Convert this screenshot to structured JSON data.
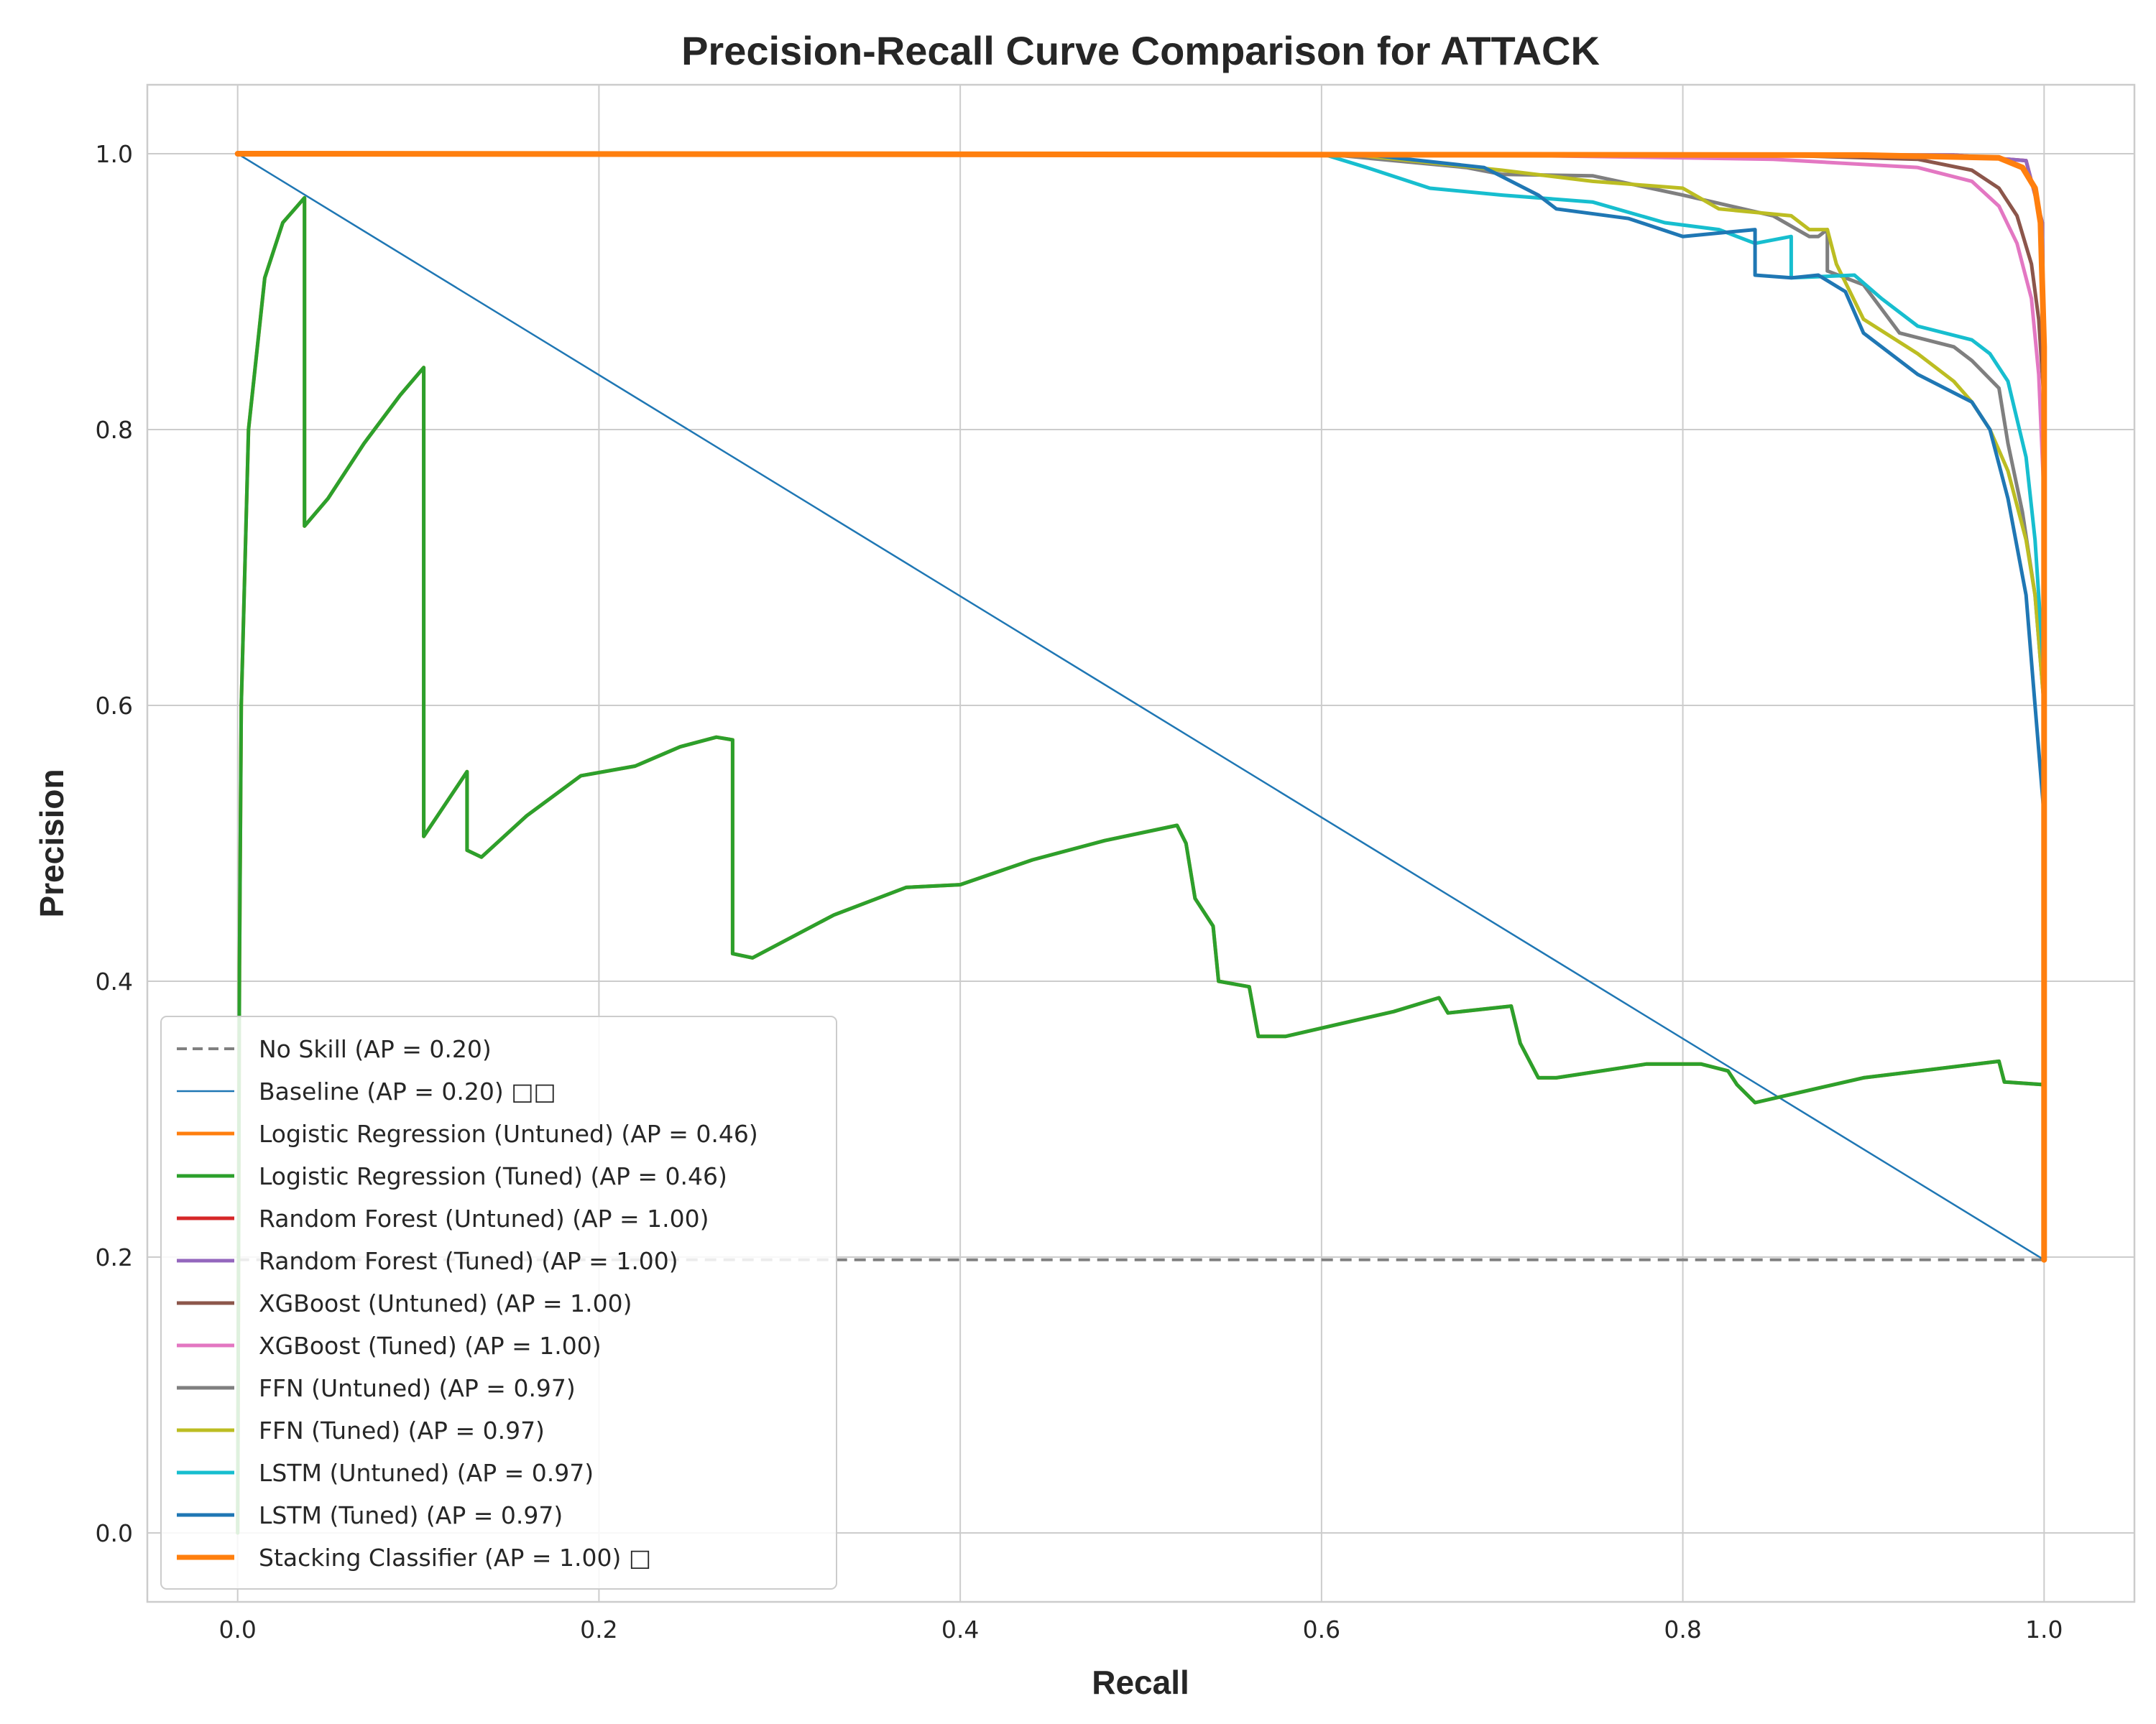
{
  "chart_data": {
    "type": "line",
    "title": "Precision-Recall Curve Comparison for ATTACK",
    "xlabel": "Recall",
    "ylabel": "Precision",
    "xlim": [
      -0.05,
      1.05
    ],
    "ylim": [
      -0.05,
      1.05
    ],
    "xticks": [
      "0.0",
      "0.2",
      "0.4",
      "0.6",
      "0.8",
      "1.0"
    ],
    "yticks": [
      "0.0",
      "0.2",
      "0.4",
      "0.6",
      "0.8",
      "1.0"
    ],
    "grid": true,
    "legend_position": "lower-left",
    "series": [
      {
        "name": "No Skill (AP = 0.20)",
        "color": "#808080",
        "dashed": true,
        "width": 4,
        "points": [
          [
            0,
            0.198
          ],
          [
            1,
            0.198
          ]
        ]
      },
      {
        "name": "Baseline (AP = 0.20) □□",
        "color": "#1f77b4",
        "width": 2.5,
        "points": [
          [
            0,
            1.0
          ],
          [
            1,
            0.198
          ]
        ]
      },
      {
        "name": "Logistic Regression (Untuned) (AP = 0.46)",
        "color": "#ff7f0e",
        "width": 5,
        "points": [
          [
            0,
            0.0
          ],
          [
            0.001,
            0.41
          ],
          [
            0.002,
            0.6
          ],
          [
            0.006,
            0.8
          ],
          [
            0.015,
            0.91
          ],
          [
            0.025,
            0.95
          ],
          [
            0.037,
            0.968
          ],
          [
            0.037,
            0.73
          ],
          [
            0.05,
            0.75
          ],
          [
            0.07,
            0.79
          ],
          [
            0.09,
            0.825
          ],
          [
            0.103,
            0.845
          ],
          [
            0.103,
            0.505
          ],
          [
            0.127,
            0.552
          ],
          [
            0.127,
            0.495
          ],
          [
            0.135,
            0.49
          ],
          [
            0.16,
            0.52
          ],
          [
            0.19,
            0.549
          ],
          [
            0.22,
            0.556
          ],
          [
            0.245,
            0.57
          ],
          [
            0.265,
            0.577
          ],
          [
            0.274,
            0.575
          ],
          [
            0.274,
            0.42
          ],
          [
            0.285,
            0.417
          ],
          [
            0.33,
            0.448
          ],
          [
            0.37,
            0.468
          ],
          [
            0.4,
            0.47
          ],
          [
            0.44,
            0.488
          ],
          [
            0.48,
            0.502
          ],
          [
            0.52,
            0.513
          ],
          [
            0.525,
            0.5
          ],
          [
            0.53,
            0.46
          ],
          [
            0.54,
            0.44
          ],
          [
            0.543,
            0.4
          ],
          [
            0.56,
            0.396
          ],
          [
            0.565,
            0.36
          ],
          [
            0.58,
            0.36
          ],
          [
            0.64,
            0.378
          ],
          [
            0.665,
            0.388
          ],
          [
            0.67,
            0.377
          ],
          [
            0.705,
            0.382
          ],
          [
            0.71,
            0.355
          ],
          [
            0.72,
            0.33
          ],
          [
            0.73,
            0.33
          ],
          [
            0.78,
            0.34
          ],
          [
            0.81,
            0.34
          ],
          [
            0.825,
            0.335
          ],
          [
            0.83,
            0.325
          ],
          [
            0.84,
            0.312
          ],
          [
            0.9,
            0.33
          ],
          [
            0.975,
            0.342
          ],
          [
            0.978,
            0.327
          ],
          [
            1.0,
            0.325
          ]
        ]
      },
      {
        "name": "Logistic Regression (Tuned) (AP = 0.46)",
        "color": "#2ca02c",
        "width": 5,
        "points": [
          [
            0,
            0.0
          ],
          [
            0.001,
            0.41
          ],
          [
            0.002,
            0.6
          ],
          [
            0.006,
            0.8
          ],
          [
            0.015,
            0.91
          ],
          [
            0.025,
            0.95
          ],
          [
            0.037,
            0.968
          ],
          [
            0.037,
            0.73
          ],
          [
            0.05,
            0.75
          ],
          [
            0.07,
            0.79
          ],
          [
            0.09,
            0.825
          ],
          [
            0.103,
            0.845
          ],
          [
            0.103,
            0.505
          ],
          [
            0.127,
            0.552
          ],
          [
            0.127,
            0.495
          ],
          [
            0.135,
            0.49
          ],
          [
            0.16,
            0.52
          ],
          [
            0.19,
            0.549
          ],
          [
            0.22,
            0.556
          ],
          [
            0.245,
            0.57
          ],
          [
            0.265,
            0.577
          ],
          [
            0.274,
            0.575
          ],
          [
            0.274,
            0.42
          ],
          [
            0.285,
            0.417
          ],
          [
            0.33,
            0.448
          ],
          [
            0.37,
            0.468
          ],
          [
            0.4,
            0.47
          ],
          [
            0.44,
            0.488
          ],
          [
            0.48,
            0.502
          ],
          [
            0.52,
            0.513
          ],
          [
            0.525,
            0.5
          ],
          [
            0.53,
            0.46
          ],
          [
            0.54,
            0.44
          ],
          [
            0.543,
            0.4
          ],
          [
            0.56,
            0.396
          ],
          [
            0.565,
            0.36
          ],
          [
            0.58,
            0.36
          ],
          [
            0.64,
            0.378
          ],
          [
            0.665,
            0.388
          ],
          [
            0.67,
            0.377
          ],
          [
            0.705,
            0.382
          ],
          [
            0.71,
            0.355
          ],
          [
            0.72,
            0.33
          ],
          [
            0.73,
            0.33
          ],
          [
            0.78,
            0.34
          ],
          [
            0.81,
            0.34
          ],
          [
            0.825,
            0.335
          ],
          [
            0.83,
            0.325
          ],
          [
            0.84,
            0.312
          ],
          [
            0.9,
            0.33
          ],
          [
            0.975,
            0.342
          ],
          [
            0.978,
            0.327
          ],
          [
            1.0,
            0.325
          ]
        ]
      },
      {
        "name": "Random Forest (Untuned) (AP = 1.00)",
        "color": "#d62728",
        "width": 5,
        "points": [
          [
            0,
            1.0
          ],
          [
            0.95,
            0.999
          ],
          [
            0.99,
            0.995
          ],
          [
            0.999,
            0.95
          ],
          [
            1.0,
            0.82
          ],
          [
            1.0,
            0.198
          ]
        ]
      },
      {
        "name": "Random Forest (Tuned) (AP = 1.00)",
        "color": "#9467bd",
        "width": 5,
        "points": [
          [
            0,
            1.0
          ],
          [
            0.95,
            0.999
          ],
          [
            0.99,
            0.995
          ],
          [
            0.999,
            0.95
          ],
          [
            1.0,
            0.82
          ],
          [
            1.0,
            0.198
          ]
        ]
      },
      {
        "name": "XGBoost (Untuned) (AP = 1.00)",
        "color": "#8c564b",
        "width": 5,
        "points": [
          [
            0,
            1.0
          ],
          [
            0.7,
            1.0
          ],
          [
            0.85,
            0.999
          ],
          [
            0.93,
            0.996
          ],
          [
            0.96,
            0.988
          ],
          [
            0.975,
            0.975
          ],
          [
            0.985,
            0.955
          ],
          [
            0.993,
            0.92
          ],
          [
            0.997,
            0.88
          ],
          [
            1.0,
            0.82
          ],
          [
            1.0,
            0.198
          ]
        ]
      },
      {
        "name": "XGBoost (Tuned) (AP = 1.00)",
        "color": "#e377c2",
        "width": 5,
        "points": [
          [
            0,
            1.0
          ],
          [
            0.7,
            0.999
          ],
          [
            0.85,
            0.996
          ],
          [
            0.93,
            0.99
          ],
          [
            0.96,
            0.98
          ],
          [
            0.975,
            0.962
          ],
          [
            0.985,
            0.935
          ],
          [
            0.993,
            0.895
          ],
          [
            0.997,
            0.84
          ],
          [
            1.0,
            0.75
          ],
          [
            1.0,
            0.198
          ]
        ]
      },
      {
        "name": "FFN (Untuned) (AP = 0.97)",
        "color": "#7f7f7f",
        "width": 5,
        "points": [
          [
            0,
            1.0
          ],
          [
            0.6,
            1.0
          ],
          [
            0.68,
            0.99
          ],
          [
            0.7,
            0.985
          ],
          [
            0.75,
            0.984
          ],
          [
            0.8,
            0.97
          ],
          [
            0.85,
            0.955
          ],
          [
            0.87,
            0.94
          ],
          [
            0.875,
            0.94
          ],
          [
            0.88,
            0.945
          ],
          [
            0.88,
            0.915
          ],
          [
            0.9,
            0.905
          ],
          [
            0.92,
            0.87
          ],
          [
            0.95,
            0.86
          ],
          [
            0.96,
            0.85
          ],
          [
            0.975,
            0.83
          ],
          [
            0.98,
            0.79
          ],
          [
            0.988,
            0.74
          ],
          [
            0.995,
            0.68
          ],
          [
            1.0,
            0.6
          ],
          [
            1.0,
            0.198
          ]
        ]
      },
      {
        "name": "FFN (Tuned) (AP = 0.97)",
        "color": "#bcbd22",
        "width": 5,
        "points": [
          [
            0,
            1.0
          ],
          [
            0.62,
            0.999
          ],
          [
            0.7,
            0.988
          ],
          [
            0.75,
            0.98
          ],
          [
            0.8,
            0.975
          ],
          [
            0.82,
            0.96
          ],
          [
            0.86,
            0.955
          ],
          [
            0.87,
            0.945
          ],
          [
            0.88,
            0.945
          ],
          [
            0.885,
            0.92
          ],
          [
            0.9,
            0.88
          ],
          [
            0.93,
            0.855
          ],
          [
            0.95,
            0.835
          ],
          [
            0.96,
            0.82
          ],
          [
            0.97,
            0.8
          ],
          [
            0.98,
            0.77
          ],
          [
            0.99,
            0.72
          ],
          [
            0.995,
            0.68
          ],
          [
            1.0,
            0.6
          ],
          [
            1.0,
            0.198
          ]
        ]
      },
      {
        "name": "LSTM (Untuned) (AP = 0.97)",
        "color": "#17becf",
        "width": 5,
        "points": [
          [
            0,
            1.0
          ],
          [
            0.6,
            1.0
          ],
          [
            0.625,
            0.99
          ],
          [
            0.66,
            0.975
          ],
          [
            0.7,
            0.97
          ],
          [
            0.75,
            0.965
          ],
          [
            0.79,
            0.95
          ],
          [
            0.82,
            0.945
          ],
          [
            0.84,
            0.935
          ],
          [
            0.86,
            0.94
          ],
          [
            0.86,
            0.91
          ],
          [
            0.895,
            0.912
          ],
          [
            0.91,
            0.895
          ],
          [
            0.93,
            0.875
          ],
          [
            0.96,
            0.865
          ],
          [
            0.97,
            0.855
          ],
          [
            0.98,
            0.835
          ],
          [
            0.99,
            0.78
          ],
          [
            0.995,
            0.72
          ],
          [
            1.0,
            0.62
          ],
          [
            1.0,
            0.198
          ]
        ]
      },
      {
        "name": "LSTM (Tuned) (AP = 0.97)",
        "color": "#1f77b4",
        "width": 5,
        "points": [
          [
            0,
            1.0
          ],
          [
            0.62,
            1.0
          ],
          [
            0.69,
            0.99
          ],
          [
            0.72,
            0.97
          ],
          [
            0.73,
            0.96
          ],
          [
            0.77,
            0.953
          ],
          [
            0.8,
            0.94
          ],
          [
            0.84,
            0.945
          ],
          [
            0.84,
            0.912
          ],
          [
            0.86,
            0.91
          ],
          [
            0.875,
            0.912
          ],
          [
            0.89,
            0.9
          ],
          [
            0.9,
            0.87
          ],
          [
            0.93,
            0.84
          ],
          [
            0.96,
            0.82
          ],
          [
            0.97,
            0.8
          ],
          [
            0.98,
            0.75
          ],
          [
            0.99,
            0.68
          ],
          [
            0.995,
            0.6
          ],
          [
            1.0,
            0.52
          ],
          [
            1.0,
            0.198
          ]
        ]
      },
      {
        "name": "Stacking Classifier (AP = 1.00) □",
        "color": "#ff7f0e",
        "width": 8,
        "points": [
          [
            0,
            1.0
          ],
          [
            0.9,
            0.999
          ],
          [
            0.975,
            0.997
          ],
          [
            0.988,
            0.99
          ],
          [
            0.995,
            0.975
          ],
          [
            0.998,
            0.95
          ],
          [
            1.0,
            0.86
          ],
          [
            1.0,
            0.198
          ]
        ]
      }
    ]
  }
}
